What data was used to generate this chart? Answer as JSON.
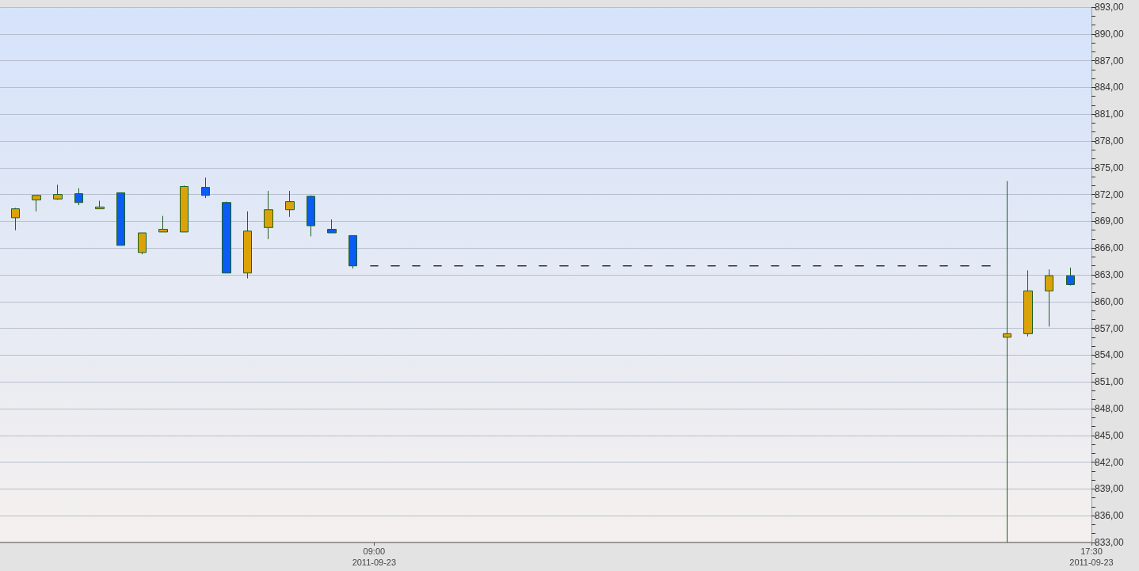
{
  "chart_data": {
    "type": "candlestick",
    "x": [
      "2011-09-23T04:45",
      "2011-09-23T05:00",
      "2011-09-23T05:15",
      "2011-09-23T05:30",
      "2011-09-23T05:45",
      "2011-09-23T06:00",
      "2011-09-23T06:15",
      "2011-09-23T06:30",
      "2011-09-23T06:45",
      "2011-09-23T07:00",
      "2011-09-23T07:15",
      "2011-09-23T07:30",
      "2011-09-23T07:45",
      "2011-09-23T08:00",
      "2011-09-23T08:15",
      "2011-09-23T08:30",
      "2011-09-23T08:45",
      "2011-09-23T09:00",
      "2011-09-23T09:15",
      "2011-09-23T09:30",
      "2011-09-23T09:45",
      "2011-09-23T10:00",
      "2011-09-23T10:15",
      "2011-09-23T10:30",
      "2011-09-23T10:45",
      "2011-09-23T11:00",
      "2011-09-23T11:15",
      "2011-09-23T11:30",
      "2011-09-23T11:45",
      "2011-09-23T12:00",
      "2011-09-23T12:15",
      "2011-09-23T12:30",
      "2011-09-23T12:45",
      "2011-09-23T13:00",
      "2011-09-23T13:15",
      "2011-09-23T13:30",
      "2011-09-23T13:45",
      "2011-09-23T14:00",
      "2011-09-23T14:15",
      "2011-09-23T14:30",
      "2011-09-23T14:45",
      "2011-09-23T15:00",
      "2011-09-23T15:15",
      "2011-09-23T15:30",
      "2011-09-23T15:45",
      "2011-09-23T16:00",
      "2011-09-23T16:15",
      "2011-09-23T16:30",
      "2011-09-23T16:45",
      "2011-09-23T17:00",
      "2011-09-23T17:15"
    ],
    "ohlc": [
      [
        869.4,
        870.5,
        868.0,
        870.4
      ],
      [
        871.4,
        871.9,
        870.1,
        871.9
      ],
      [
        871.5,
        873.1,
        871.4,
        872.0
      ],
      [
        872.1,
        872.7,
        870.8,
        871.1
      ],
      [
        870.4,
        871.3,
        870.4,
        870.6
      ],
      [
        872.2,
        872.2,
        866.3,
        866.3
      ],
      [
        865.5,
        867.7,
        865.3,
        867.7
      ],
      [
        867.8,
        869.6,
        867.8,
        868.1
      ],
      [
        867.8,
        873.0,
        867.8,
        872.9
      ],
      [
        872.8,
        873.9,
        871.6,
        871.9
      ],
      [
        871.1,
        871.2,
        863.2,
        863.2
      ],
      [
        863.2,
        870.1,
        862.6,
        867.9
      ],
      [
        868.3,
        872.4,
        867.0,
        870.3
      ],
      [
        870.3,
        872.4,
        869.5,
        871.2
      ],
      [
        871.8,
        871.9,
        867.3,
        868.5
      ],
      [
        868.1,
        869.2,
        867.7,
        867.7
      ],
      [
        867.4,
        867.4,
        863.7,
        864.0
      ],
      [
        864.0,
        864.0,
        864.0,
        864.0
      ],
      [
        864.0,
        864.0,
        864.0,
        864.0
      ],
      [
        864.0,
        864.0,
        864.0,
        864.0
      ],
      [
        864.0,
        864.0,
        864.0,
        864.0
      ],
      [
        864.0,
        864.0,
        864.0,
        864.0
      ],
      [
        864.0,
        864.0,
        864.0,
        864.0
      ],
      [
        864.0,
        864.0,
        864.0,
        864.0
      ],
      [
        864.0,
        864.0,
        864.0,
        864.0
      ],
      [
        864.0,
        864.0,
        864.0,
        864.0
      ],
      [
        864.0,
        864.0,
        864.0,
        864.0
      ],
      [
        864.0,
        864.0,
        864.0,
        864.0
      ],
      [
        864.0,
        864.0,
        864.0,
        864.0
      ],
      [
        864.0,
        864.0,
        864.0,
        864.0
      ],
      [
        864.0,
        864.0,
        864.0,
        864.0
      ],
      [
        864.0,
        864.0,
        864.0,
        864.0
      ],
      [
        864.0,
        864.0,
        864.0,
        864.0
      ],
      [
        864.0,
        864.0,
        864.0,
        864.0
      ],
      [
        864.0,
        864.0,
        864.0,
        864.0
      ],
      [
        864.0,
        864.0,
        864.0,
        864.0
      ],
      [
        864.0,
        864.0,
        864.0,
        864.0
      ],
      [
        864.0,
        864.0,
        864.0,
        864.0
      ],
      [
        864.0,
        864.0,
        864.0,
        864.0
      ],
      [
        864.0,
        864.0,
        864.0,
        864.0
      ],
      [
        864.0,
        864.0,
        864.0,
        864.0
      ],
      [
        864.0,
        864.0,
        864.0,
        864.0
      ],
      [
        864.0,
        864.0,
        864.0,
        864.0
      ],
      [
        864.0,
        864.0,
        864.0,
        864.0
      ],
      [
        864.0,
        864.0,
        864.0,
        864.0
      ],
      [
        864.0,
        864.0,
        864.0,
        864.0
      ],
      [
        864.0,
        864.0,
        864.0,
        864.0
      ],
      [
        856.0,
        873.5,
        833.0,
        856.4
      ],
      [
        856.4,
        863.5,
        856.1,
        861.2
      ],
      [
        861.2,
        863.6,
        857.2,
        862.9
      ],
      [
        862.9,
        863.8,
        861.8,
        861.9
      ]
    ],
    "colors": [
      "#dba30a",
      "#dba30a",
      "#dba30a",
      "#0a5cf5",
      "#dba30a",
      "#0a5cf5",
      "#dba30a",
      "#dba30a",
      "#dba30a",
      "#0a5cf5",
      "#0a5cf5",
      "#dba30a",
      "#dba30a",
      "#dba30a",
      "#0a5cf5",
      "#0a5cf5",
      "#0a5cf5",
      "#1c1c1c",
      "#1c1c1c",
      "#1c1c1c",
      "#1c1c1c",
      "#1c1c1c",
      "#1c1c1c",
      "#1c1c1c",
      "#1c1c1c",
      "#1c1c1c",
      "#1c1c1c",
      "#1c1c1c",
      "#1c1c1c",
      "#1c1c1c",
      "#1c1c1c",
      "#1c1c1c",
      "#1c1c1c",
      "#1c1c1c",
      "#1c1c1c",
      "#1c1c1c",
      "#1c1c1c",
      "#1c1c1c",
      "#1c1c1c",
      "#1c1c1c",
      "#1c1c1c",
      "#1c1c1c",
      "#1c1c1c",
      "#1c1c1c",
      "#1c1c1c",
      "#1c1c1c",
      "#1c1c1c",
      "#dba30a",
      "#dba30a",
      "#dba30a",
      "#0a5cf5"
    ],
    "xlim": [
      "2011-09-23T04:34",
      "2011-09-23T17:30"
    ],
    "xticks": [
      {
        "value": "2011-09-23T09:00",
        "label": "09:00\n2011-09-23"
      },
      {
        "value": "2011-09-23T17:30",
        "label": "17:30\n2011-09-23"
      }
    ],
    "ylim": [
      833,
      893
    ],
    "yticks": [
      {
        "value": 833,
        "label": "833,00"
      },
      {
        "value": 834,
        "label": null
      },
      {
        "value": 835,
        "label": null
      },
      {
        "value": 836,
        "label": "836,00"
      },
      {
        "value": 837,
        "label": null
      },
      {
        "value": 838,
        "label": null
      },
      {
        "value": 839,
        "label": "839,00"
      },
      {
        "value": 840,
        "label": null
      },
      {
        "value": 841,
        "label": null
      },
      {
        "value": 842,
        "label": "842,00"
      },
      {
        "value": 843,
        "label": null
      },
      {
        "value": 844,
        "label": null
      },
      {
        "value": 845,
        "label": "845,00"
      },
      {
        "value": 846,
        "label": null
      },
      {
        "value": 847,
        "label": null
      },
      {
        "value": 848,
        "label": "848,00"
      },
      {
        "value": 849,
        "label": null
      },
      {
        "value": 850,
        "label": null
      },
      {
        "value": 851,
        "label": "851,00"
      },
      {
        "value": 852,
        "label": null
      },
      {
        "value": 853,
        "label": null
      },
      {
        "value": 854,
        "label": "854,00"
      },
      {
        "value": 855,
        "label": null
      },
      {
        "value": 856,
        "label": null
      },
      {
        "value": 857,
        "label": "857,00"
      },
      {
        "value": 858,
        "label": null
      },
      {
        "value": 859,
        "label": null
      },
      {
        "value": 860,
        "label": "860,00"
      },
      {
        "value": 861,
        "label": null
      },
      {
        "value": 862,
        "label": null
      },
      {
        "value": 863,
        "label": "863,00"
      },
      {
        "value": 864,
        "label": null
      },
      {
        "value": 865,
        "label": null
      },
      {
        "value": 866,
        "label": "866,00"
      },
      {
        "value": 867,
        "label": null
      },
      {
        "value": 868,
        "label": null
      },
      {
        "value": 869,
        "label": "869,00"
      },
      {
        "value": 870,
        "label": null
      },
      {
        "value": 871,
        "label": null
      },
      {
        "value": 872,
        "label": "872,00"
      },
      {
        "value": 873,
        "label": null
      },
      {
        "value": 874,
        "label": null
      },
      {
        "value": 875,
        "label": "875,00"
      },
      {
        "value": 876,
        "label": null
      },
      {
        "value": 877,
        "label": null
      },
      {
        "value": 878,
        "label": "878,00"
      },
      {
        "value": 879,
        "label": null
      },
      {
        "value": 880,
        "label": null
      },
      {
        "value": 881,
        "label": "881,00"
      },
      {
        "value": 882,
        "label": null
      },
      {
        "value": 883,
        "label": null
      },
      {
        "value": 884,
        "label": "884,00"
      },
      {
        "value": 885,
        "label": null
      },
      {
        "value": 886,
        "label": null
      },
      {
        "value": 887,
        "label": "887,00"
      },
      {
        "value": 888,
        "label": null
      },
      {
        "value": 889,
        "label": null
      },
      {
        "value": 890,
        "label": "890,00"
      },
      {
        "value": 891,
        "label": null
      },
      {
        "value": 892,
        "label": null
      },
      {
        "value": 893,
        "label": "893,00"
      }
    ],
    "grid": "y"
  }
}
